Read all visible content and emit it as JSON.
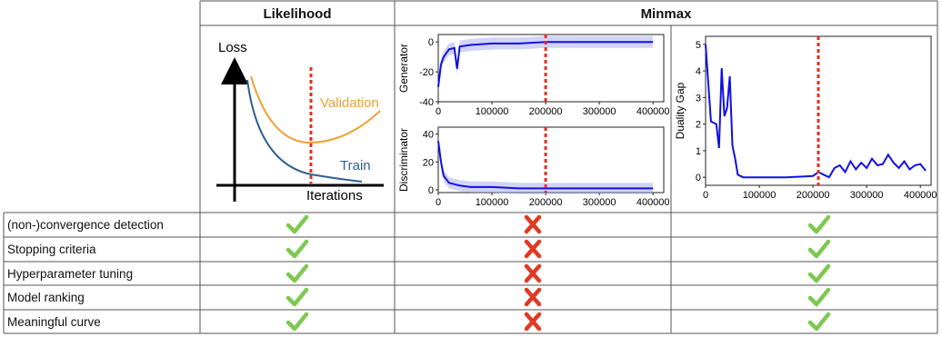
{
  "headers": {
    "likelihood": "Likelihood",
    "minmax": "Minmax"
  },
  "likelihood_diagram": {
    "ylabel": "Loss",
    "xlabel": "Iterations",
    "validation_label": "Validation",
    "train_label": "Train",
    "colors": {
      "validation": "#f0a030",
      "train": "#2d5f8f",
      "stop_line": "#e03020"
    }
  },
  "rows": [
    {
      "label": "(non-)convergence detection",
      "likelihood": "check",
      "minmax_players": "cross",
      "duality_gap": "check"
    },
    {
      "label": "Stopping criteria",
      "likelihood": "check",
      "minmax_players": "cross",
      "duality_gap": "check"
    },
    {
      "label": "Hyperparameter tuning",
      "likelihood": "check",
      "minmax_players": "cross",
      "duality_gap": "check"
    },
    {
      "label": "Model ranking",
      "likelihood": "check",
      "minmax_players": "cross",
      "duality_gap": "check"
    },
    {
      "label": "Meaningful curve",
      "likelihood": "check",
      "minmax_players": "cross",
      "duality_gap": "check"
    }
  ],
  "mark_colors": {
    "check": "#7ec850",
    "cross": "#e03a22"
  },
  "chart_data": [
    {
      "type": "line",
      "ylabel": "Generator",
      "xlim": [
        0,
        420000
      ],
      "ylim": [
        -40,
        5
      ],
      "xticks": [
        0,
        100000,
        200000,
        300000,
        400000
      ],
      "yticks": [
        0,
        -20,
        -40
      ],
      "vline": 200000,
      "x": [
        0,
        5000,
        10000,
        20000,
        30000,
        35000,
        40000,
        60000,
        100000,
        150000,
        200000,
        250000,
        300000,
        350000,
        400000
      ],
      "values": [
        -30,
        -15,
        -10,
        -5,
        -4,
        -18,
        -3,
        -2,
        -1,
        -1,
        0,
        0,
        0,
        0,
        0
      ]
    },
    {
      "type": "line",
      "ylabel": "Discriminator",
      "xlim": [
        0,
        420000
      ],
      "ylim": [
        -2,
        45
      ],
      "xticks": [
        0,
        100000,
        200000,
        300000,
        400000
      ],
      "yticks": [
        0,
        20,
        40
      ],
      "vline": 200000,
      "x": [
        0,
        5000,
        10000,
        20000,
        40000,
        60000,
        100000,
        150000,
        200000,
        250000,
        300000,
        350000,
        400000
      ],
      "values": [
        35,
        20,
        10,
        5,
        3,
        2,
        2,
        1,
        1,
        1,
        1,
        1,
        1
      ]
    },
    {
      "type": "line",
      "ylabel": "Duality Gap",
      "xlim": [
        0,
        420000
      ],
      "ylim": [
        -0.3,
        5.3
      ],
      "xticks": [
        0,
        100000,
        200000,
        300000,
        400000
      ],
      "yticks": [
        0,
        1,
        2,
        3,
        4,
        5
      ],
      "vline": 210000,
      "x": [
        0,
        10000,
        20000,
        25000,
        30000,
        35000,
        40000,
        45000,
        50000,
        55000,
        60000,
        70000,
        80000,
        100000,
        150000,
        200000,
        210000,
        220000,
        230000,
        240000,
        250000,
        260000,
        270000,
        280000,
        290000,
        300000,
        310000,
        320000,
        330000,
        340000,
        350000,
        360000,
        370000,
        380000,
        390000,
        400000,
        410000
      ],
      "values": [
        5.0,
        2.1,
        2.0,
        1.1,
        4.1,
        2.3,
        2.6,
        3.8,
        1.2,
        0.7,
        0.1,
        0.0,
        0.0,
        0.0,
        0.0,
        0.05,
        0.2,
        0.1,
        0.0,
        0.35,
        0.45,
        0.2,
        0.6,
        0.3,
        0.55,
        0.35,
        0.7,
        0.45,
        0.5,
        0.85,
        0.55,
        0.35,
        0.6,
        0.3,
        0.45,
        0.5,
        0.25
      ]
    }
  ]
}
